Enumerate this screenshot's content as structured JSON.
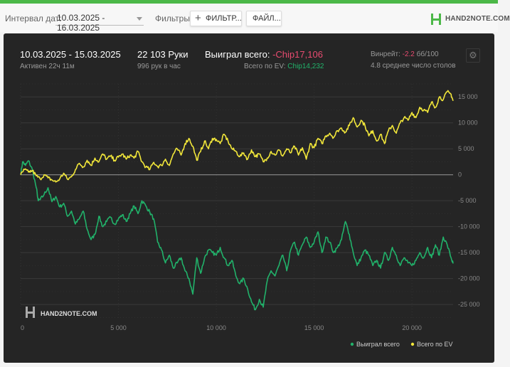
{
  "toolbar": {
    "interval_label": "Интервал дат:",
    "date_range": "10.03.2025 - 16.03.2025",
    "filters_label": "Фильтры:",
    "filter_button": "ФИЛЬТР...",
    "file_button": "ФАЙЛ...",
    "logo_text": "HAND2NOTE.COM"
  },
  "summary": {
    "period": "10.03.2025 - 15.03.2025",
    "active": "Активен 22ч 11м",
    "hands": "22 103 Руки",
    "hands_per_hour": "996 рук в час",
    "won_label": "Выиграл всего:",
    "won_value": "-Chip17,106",
    "ev_label": "Всего по EV:",
    "ev_value": "Chip14,232",
    "winrate_label": "Винрейт:",
    "winrate_value": "-2.2",
    "winrate_unit": "бб/100",
    "avg_tables": "4.8 среднее число столов"
  },
  "colors": {
    "won": "#21b26a",
    "ev": "#f2e73a",
    "negative": "#e84b70",
    "positive": "#21b26a",
    "brand": "#4cb848"
  },
  "chart_data": {
    "type": "line",
    "watermark": "HAND2NOTE.COM",
    "xlim": [
      0,
      22103
    ],
    "ylim": [
      -28000,
      17500
    ],
    "x_ticks": [
      0,
      5000,
      10000,
      15000,
      20000
    ],
    "x_tick_labels": [
      "0",
      "5 000",
      "10 000",
      "15 000",
      "20 000"
    ],
    "y_ticks": [
      15000,
      10000,
      5000,
      0,
      -5000,
      -10000,
      -15000,
      -20000,
      -25000
    ],
    "y_tick_labels": [
      "15 000",
      "10 000",
      "5 000",
      "0",
      "-5 000",
      "-10 000",
      "-15 000",
      "-20 000",
      "-25 000"
    ],
    "legend_position": "bottom-right",
    "series": [
      {
        "name": "Выиграл всего",
        "color": "#21b26a",
        "x": [
          0,
          100,
          250,
          400,
          600,
          800,
          900,
          1000,
          1200,
          1400,
          1600,
          1800,
          2000,
          2200,
          2400,
          2600,
          2800,
          3000,
          3200,
          3400,
          3600,
          3800,
          4000,
          4200,
          4400,
          4600,
          4800,
          5000,
          5200,
          5400,
          5600,
          5800,
          6000,
          6200,
          6400,
          6600,
          6800,
          7000,
          7200,
          7400,
          7600,
          7800,
          8000,
          8200,
          8400,
          8600,
          8800,
          9000,
          9200,
          9400,
          9600,
          9800,
          10000,
          10200,
          10400,
          10600,
          10800,
          11000,
          11200,
          11400,
          11600,
          11800,
          12000,
          12200,
          12400,
          12600,
          12800,
          13000,
          13200,
          13400,
          13600,
          13800,
          14000,
          14200,
          14400,
          14600,
          14800,
          15000,
          15200,
          15400,
          15600,
          15800,
          16000,
          16200,
          16400,
          16600,
          16800,
          17000,
          17200,
          17400,
          17600,
          17800,
          18000,
          18200,
          18400,
          18600,
          18800,
          19000,
          19200,
          19400,
          19600,
          19800,
          20000,
          20200,
          20400,
          20600,
          20800,
          21000,
          21200,
          21400,
          21600,
          21800,
          22000,
          22103
        ],
        "values": [
          0,
          2500,
          1800,
          2700,
          1000,
          -2500,
          -5000,
          -4800,
          -3800,
          -2500,
          -5200,
          -4200,
          -6200,
          -5500,
          -8000,
          -7000,
          -9500,
          -8500,
          -7000,
          -10500,
          -12500,
          -11500,
          -8000,
          -10000,
          -9000,
          -8200,
          -9500,
          -8500,
          -7700,
          -9000,
          -7500,
          -6000,
          -7500,
          -5000,
          -6000,
          -7200,
          -8500,
          -13000,
          -14500,
          -17000,
          -15500,
          -18000,
          -17000,
          -16000,
          -18500,
          -20000,
          -23000,
          -16000,
          -19000,
          -16000,
          -14500,
          -15000,
          -15500,
          -14000,
          -16000,
          -17500,
          -16500,
          -19500,
          -21000,
          -20000,
          -22000,
          -24500,
          -26000,
          -24000,
          -25500,
          -20500,
          -18500,
          -19500,
          -17500,
          -15500,
          -18500,
          -14500,
          -13000,
          -15500,
          -13500,
          -12000,
          -14000,
          -13000,
          -11000,
          -15000,
          -12000,
          -13000,
          -15000,
          -14000,
          -12500,
          -9000,
          -11500,
          -15000,
          -17500,
          -16000,
          -14500,
          -15500,
          -17500,
          -16500,
          -18000,
          -15000,
          -16500,
          -14000,
          -15500,
          -17500,
          -16000,
          -17000,
          -17500,
          -16500,
          -15000,
          -16000,
          -14000,
          -16000,
          -13500,
          -15500,
          -12000,
          -13500,
          -16000,
          -17100
        ]
      },
      {
        "name": "Всего по EV",
        "color": "#f2e73a",
        "x": [
          0,
          200,
          400,
          600,
          800,
          1000,
          1200,
          1400,
          1600,
          1800,
          2000,
          2200,
          2400,
          2600,
          2800,
          3000,
          3200,
          3400,
          3600,
          3800,
          4000,
          4200,
          4400,
          4600,
          4800,
          5000,
          5200,
          5400,
          5600,
          5800,
          6000,
          6200,
          6400,
          6600,
          6800,
          7000,
          7200,
          7400,
          7600,
          7800,
          8000,
          8200,
          8400,
          8600,
          8800,
          9000,
          9200,
          9400,
          9600,
          9800,
          10000,
          10200,
          10400,
          10600,
          10800,
          11000,
          11200,
          11400,
          11600,
          11800,
          12000,
          12200,
          12400,
          12600,
          12800,
          13000,
          13200,
          13400,
          13600,
          13800,
          14000,
          14200,
          14400,
          14600,
          14800,
          15000,
          15200,
          15400,
          15600,
          15800,
          16000,
          16200,
          16400,
          16600,
          16800,
          17000,
          17200,
          17400,
          17600,
          17800,
          18000,
          18200,
          18400,
          18600,
          18800,
          19000,
          19200,
          19400,
          19600,
          19800,
          20000,
          20200,
          20400,
          20600,
          20800,
          21000,
          21200,
          21400,
          21600,
          21800,
          22000,
          22103
        ],
        "values": [
          0,
          1000,
          500,
          800,
          -200,
          -800,
          0,
          -600,
          -1000,
          -1400,
          -800,
          300,
          -900,
          -400,
          1000,
          2200,
          1500,
          2800,
          1800,
          3200,
          2500,
          4000,
          3000,
          3600,
          2800,
          3400,
          4000,
          3000,
          3800,
          3200,
          4500,
          2500,
          1500,
          1000,
          2400,
          1600,
          1800,
          3000,
          1800,
          4000,
          5000,
          3800,
          6000,
          7000,
          5500,
          2800,
          4500,
          6500,
          5000,
          7000,
          6800,
          6000,
          7800,
          6500,
          5000,
          4500,
          3500,
          4200,
          3000,
          4800,
          3500,
          4000,
          2500,
          3200,
          4500,
          3800,
          4800,
          3600,
          5000,
          4200,
          5500,
          3800,
          5200,
          3000,
          6000,
          5200,
          7000,
          6000,
          7500,
          8000,
          7200,
          8500,
          9000,
          8200,
          9500,
          11000,
          9200,
          10500,
          9500,
          7500,
          8500,
          6500,
          7800,
          6000,
          8500,
          9500,
          8000,
          10000,
          11000,
          10500,
          12000,
          11000,
          13000,
          12500,
          12000,
          14000,
          13000,
          15000,
          14500,
          16000,
          15500,
          14232
        ]
      }
    ]
  }
}
